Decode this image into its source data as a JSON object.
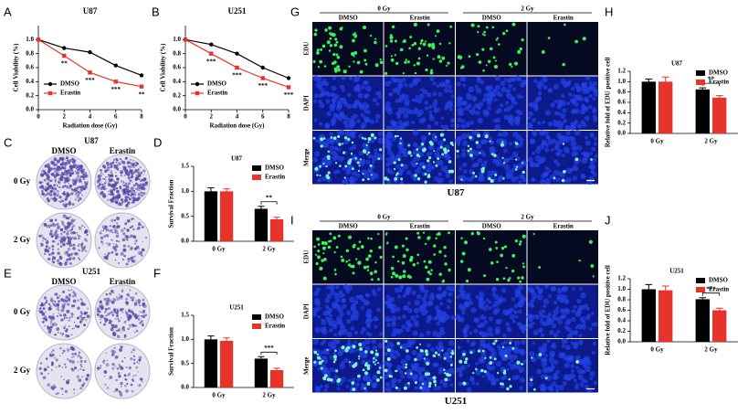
{
  "chart_data": [
    {
      "type": "line",
      "panel_label": "A",
      "title": "U87",
      "xlabel": "Radiation dose (Gy)",
      "ylabel": "Cell Viability (%)",
      "x": [
        0,
        2,
        4,
        6,
        8
      ],
      "xlim": [
        0,
        8
      ],
      "xticks": [
        0,
        2,
        4,
        6,
        8
      ],
      "ylim": [
        0,
        1.2
      ],
      "yticks": [
        {
          "value": 0,
          "label": "0.0"
        },
        0.2,
        0.4,
        0.6,
        0.8,
        {
          "value": 1,
          "label": "1.0"
        }
      ],
      "series": [
        {
          "name": "DMSO",
          "color": "#000000",
          "marker": "circle",
          "values": [
            1.0,
            0.88,
            0.82,
            0.63,
            0.49
          ]
        },
        {
          "name": "Erastin",
          "color": "#e8332a",
          "marker": "square",
          "values": [
            1.0,
            0.77,
            0.53,
            0.4,
            0.33
          ]
        }
      ],
      "annotations": [
        {
          "x": 2,
          "text": "**"
        },
        {
          "x": 4,
          "text": "***"
        },
        {
          "x": 6,
          "text": "***"
        },
        {
          "x": 8,
          "text": "**"
        }
      ]
    },
    {
      "type": "line",
      "panel_label": "B",
      "title": "U251",
      "xlabel": "Radiation dose (Gy)",
      "ylabel": "Cell Viability (%)",
      "x": [
        0,
        2,
        4,
        6,
        8
      ],
      "xlim": [
        0,
        8
      ],
      "xticks": [
        0,
        2,
        4,
        6,
        8
      ],
      "ylim": [
        0,
        1.2
      ],
      "yticks": [
        {
          "value": 0,
          "label": "0.0"
        },
        0.2,
        0.4,
        0.6,
        0.8,
        {
          "value": 1,
          "label": "1.0"
        }
      ],
      "series": [
        {
          "name": "DMSO",
          "color": "#000000",
          "marker": "circle",
          "values": [
            1.0,
            0.93,
            0.8,
            0.6,
            0.45
          ]
        },
        {
          "name": "Erastin",
          "color": "#e8332a",
          "marker": "square",
          "values": [
            1.0,
            0.8,
            0.6,
            0.45,
            0.32
          ]
        }
      ],
      "annotations": [
        {
          "x": 2,
          "text": "***"
        },
        {
          "x": 4,
          "text": "***"
        },
        {
          "x": 6,
          "text": "***"
        },
        {
          "x": 8,
          "text": "***"
        }
      ]
    },
    {
      "type": "bar",
      "panel_label": "D",
      "title": "U87",
      "ylabel": "Survival Fraction",
      "categories": [
        "0 Gy",
        "2 Gy"
      ],
      "ylim": [
        0,
        1.5
      ],
      "yticks": [
        {
          "value": 0,
          "label": "0.0"
        },
        0.5,
        {
          "value": 1,
          "label": "1.0"
        },
        1.5
      ],
      "series": [
        {
          "name": "DMSO",
          "color": "#000000",
          "values": [
            1.0,
            0.65
          ],
          "errors": [
            0.07,
            0.05
          ]
        },
        {
          "name": "Erastin",
          "color": "#e8332a",
          "values": [
            1.0,
            0.44
          ],
          "errors": [
            0.05,
            0.04
          ]
        }
      ],
      "annotation": "**"
    },
    {
      "type": "bar",
      "panel_label": "F",
      "title": "U251",
      "ylabel": "Survival Fraction",
      "categories": [
        "0 Gy",
        "2 Gy"
      ],
      "ylim": [
        0,
        1.5
      ],
      "yticks": [
        {
          "value": 0,
          "label": "0.0"
        },
        0.5,
        {
          "value": 1,
          "label": "1.0"
        },
        1.5
      ],
      "series": [
        {
          "name": "DMSO",
          "color": "#000000",
          "values": [
            1.0,
            0.6
          ],
          "errors": [
            0.07,
            0.04
          ]
        },
        {
          "name": "Erastin",
          "color": "#e8332a",
          "values": [
            0.97,
            0.36
          ],
          "errors": [
            0.06,
            0.04
          ]
        }
      ],
      "annotation": "***"
    },
    {
      "type": "bar",
      "panel_label": "H",
      "title": "U87",
      "ylabel": "Relative fold of EDU positive cell",
      "categories": [
        "0 Gy",
        "2 Gy"
      ],
      "ylim": [
        0,
        1.2
      ],
      "yticks": [
        {
          "value": 0,
          "label": "0.0"
        },
        0.2,
        0.4,
        0.6,
        0.8,
        {
          "value": 1,
          "label": "1.0"
        },
        1.2
      ],
      "series": [
        {
          "name": "DMSO",
          "color": "#000000",
          "values": [
            1.0,
            0.85
          ],
          "errors": [
            0.05,
            0.03
          ]
        },
        {
          "name": "Erastin",
          "color": "#e8332a",
          "values": [
            1.0,
            0.69
          ],
          "errors": [
            0.09,
            0.04
          ]
        }
      ],
      "annotation": "**"
    },
    {
      "type": "bar",
      "panel_label": "J",
      "title": "U251",
      "ylabel": "Relative fold of EDU positive cell",
      "categories": [
        "0 Gy",
        "2 Gy"
      ],
      "ylim": [
        0,
        1.2
      ],
      "yticks": [
        {
          "value": 0,
          "label": "0.0"
        },
        0.2,
        0.4,
        0.6,
        0.8,
        {
          "value": 1,
          "label": "1.0"
        },
        1.2
      ],
      "series": [
        {
          "name": "DMSO",
          "color": "#000000",
          "values": [
            1.0,
            0.81
          ],
          "errors": [
            0.09,
            0.03
          ]
        },
        {
          "name": "Erastin",
          "color": "#e8332a",
          "values": [
            0.98,
            0.6
          ],
          "errors": [
            0.08,
            0.04
          ]
        }
      ],
      "annotation": "***"
    }
  ],
  "panels": {
    "C": {
      "panel_label": "C",
      "title": "U87",
      "columns": [
        "DMSO",
        "Erastin"
      ],
      "rows": [
        "0 Gy",
        "2 Gy"
      ]
    },
    "E": {
      "panel_label": "E",
      "title": "U251",
      "columns": [
        "DMSO",
        "Erastin"
      ],
      "rows": [
        "0 Gy",
        "2 Gy"
      ]
    },
    "G": {
      "panel_label": "G",
      "groups": [
        "0 Gy",
        "2 Gy"
      ],
      "columns": [
        "DMSO",
        "Erastin",
        "DMSO",
        "Erastin"
      ],
      "rows": [
        "EDU",
        "DAPI",
        "Merge"
      ],
      "caption": "U87"
    },
    "I": {
      "panel_label": "I",
      "groups": [
        "0 Gy",
        "2 Gy"
      ],
      "columns": [
        "DMSO",
        "Erastin",
        "DMSO",
        "Erastin"
      ],
      "rows": [
        "EDU",
        "DAPI",
        "Merge"
      ],
      "caption": "U251"
    }
  }
}
